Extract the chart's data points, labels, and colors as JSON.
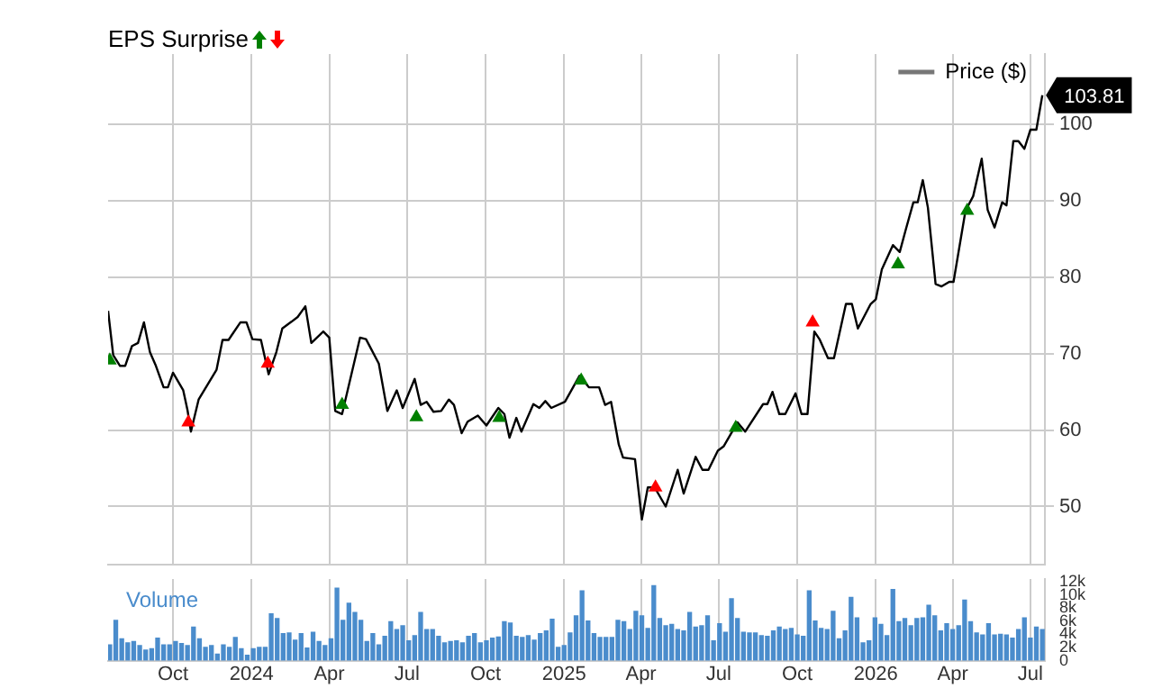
{
  "chart_data": [
    {
      "type": "line",
      "title": "EPS Surprise",
      "tick_labels": "y",
      "xlim": [
        "2023-07-17",
        "2026-07-18"
      ],
      "xticks": [
        {
          "value": "2023-10-01",
          "label": null
        },
        {
          "value": "2024-01-01",
          "label": null
        },
        {
          "value": "2024-04-01",
          "label": null
        },
        {
          "value": "2024-07-01",
          "label": null
        },
        {
          "value": "2024-10-01",
          "label": null
        },
        {
          "value": "2025-01-01",
          "label": null
        },
        {
          "value": "2025-04-01",
          "label": null
        },
        {
          "value": "2025-07-01",
          "label": null
        },
        {
          "value": "2025-10-01",
          "label": null
        },
        {
          "value": "2026-01-01",
          "label": null
        },
        {
          "value": "2026-04-01",
          "label": null
        },
        {
          "value": "2026-07-01",
          "label": null
        }
      ],
      "ylim": [
        42.4,
        109.2
      ],
      "yticks": [
        50,
        60,
        70,
        80,
        90,
        100
      ],
      "grid": true,
      "legend": "top right",
      "series": [
        {
          "name": "Price ($)",
          "color": "#000000",
          "marker": "none",
          "x": [
            "2023-07-17",
            "2023-07-23",
            "2023-07-31",
            "2023-08-06",
            "2023-08-14",
            "2023-08-21",
            "2023-08-28",
            "2023-09-04",
            "2023-09-11",
            "2023-09-20",
            "2023-09-25",
            "2023-10-01",
            "2023-10-13",
            "2023-10-18",
            "2023-10-22",
            "2023-10-31",
            "2023-11-21",
            "2023-11-28",
            "2023-12-05",
            "2023-12-19",
            "2023-12-26",
            "2024-01-02",
            "2024-01-12",
            "2024-01-21",
            "2024-01-30",
            "2024-02-06",
            "2024-02-17",
            "2024-02-24",
            "2024-03-04",
            "2024-03-11",
            "2024-03-25",
            "2024-04-01",
            "2024-04-08",
            "2024-04-16",
            "2024-05-07",
            "2024-05-14",
            "2024-05-29",
            "2024-06-08",
            "2024-06-19",
            "2024-06-26",
            "2024-07-10",
            "2024-07-17",
            "2024-07-24",
            "2024-08-01",
            "2024-08-10",
            "2024-08-19",
            "2024-08-25",
            "2024-09-03",
            "2024-09-10",
            "2024-09-22",
            "2024-10-02",
            "2024-10-16",
            "2024-10-23",
            "2024-10-29",
            "2024-11-06",
            "2024-11-12",
            "2024-11-26",
            "2024-12-03",
            "2024-12-10",
            "2024-12-17",
            "2025-01-02",
            "2025-01-19",
            "2025-01-30",
            "2025-02-11",
            "2025-02-18",
            "2025-02-25",
            "2025-03-06",
            "2025-03-11",
            "2025-03-25",
            "2025-04-02",
            "2025-04-09",
            "2025-04-17",
            "2025-04-30",
            "2025-05-14",
            "2025-05-21",
            "2025-06-04",
            "2025-06-12",
            "2025-06-19",
            "2025-06-30",
            "2025-07-07",
            "2025-07-23",
            "2025-08-01",
            "2025-08-22",
            "2025-08-27",
            "2025-09-02",
            "2025-09-10",
            "2025-09-17",
            "2025-09-29",
            "2025-10-06",
            "2025-10-13",
            "2025-10-21",
            "2025-10-27",
            "2025-11-06",
            "2025-11-13",
            "2025-11-27",
            "2025-12-04",
            "2025-12-11",
            "2025-12-26",
            "2026-01-01",
            "2026-01-08",
            "2026-01-21",
            "2026-01-29",
            "2026-02-05",
            "2026-02-14",
            "2026-02-19",
            "2026-02-25",
            "2026-03-03",
            "2026-03-12",
            "2026-03-19",
            "2026-03-28",
            "2026-04-02",
            "2026-04-16",
            "2026-04-25",
            "2026-05-05",
            "2026-05-12",
            "2026-05-20",
            "2026-05-29",
            "2026-06-03",
            "2026-06-11",
            "2026-06-17",
            "2026-06-24",
            "2026-07-01",
            "2026-07-08",
            "2026-07-15"
          ],
          "values": [
            75.6,
            69.8,
            68.4,
            68.4,
            71.0,
            71.4,
            74.1,
            70.2,
            68.4,
            65.6,
            65.6,
            67.5,
            65.2,
            62.6,
            59.8,
            64.0,
            67.9,
            71.8,
            71.8,
            74.1,
            74.1,
            71.9,
            71.8,
            67.3,
            70.2,
            73.3,
            74.2,
            74.8,
            76.2,
            71.4,
            72.9,
            72.1,
            62.5,
            62.1,
            72.1,
            71.9,
            68.7,
            62.5,
            65.2,
            62.9,
            66.7,
            63.3,
            63.7,
            62.4,
            62.5,
            64.0,
            63.3,
            59.6,
            61.1,
            61.9,
            60.6,
            62.9,
            62.1,
            59.0,
            61.6,
            59.8,
            63.4,
            62.9,
            63.8,
            62.9,
            63.7,
            67.1,
            65.6,
            65.6,
            63.3,
            63.7,
            58.1,
            56.4,
            56.2,
            48.3,
            52.5,
            52.5,
            50.0,
            54.8,
            51.7,
            56.5,
            54.8,
            54.8,
            57.3,
            57.9,
            61.0,
            59.8,
            63.4,
            63.4,
            65.0,
            62.1,
            62.1,
            64.8,
            62.1,
            62.1,
            72.9,
            71.9,
            69.4,
            69.4,
            76.5,
            76.5,
            73.3,
            76.5,
            77.1,
            81.0,
            84.2,
            83.3,
            86.2,
            89.8,
            89.8,
            92.7,
            89.1,
            79.1,
            78.8,
            79.4,
            79.4,
            88.7,
            90.6,
            95.5,
            88.8,
            86.5,
            89.8,
            89.4,
            97.8,
            97.8,
            96.8,
            99.3,
            99.3,
            103.81
          ],
          "value_labels": [
            null,
            null,
            null,
            null,
            null,
            null,
            null,
            null,
            null,
            null,
            null,
            null,
            null,
            null,
            null,
            null,
            null,
            null,
            null,
            null,
            null,
            null,
            null,
            null,
            null,
            null,
            null,
            null,
            null,
            null,
            null,
            null,
            null,
            null,
            null,
            null,
            null,
            null,
            null,
            null,
            null,
            null,
            null,
            null,
            null,
            null,
            null,
            null,
            null,
            null,
            null,
            null,
            null,
            null,
            null,
            null,
            null,
            null,
            null,
            null,
            null,
            null,
            null,
            null,
            null,
            null,
            null,
            null,
            null,
            null,
            null,
            null,
            null,
            null,
            null,
            null,
            null,
            null,
            null,
            null,
            null,
            null,
            null,
            null,
            null,
            null,
            null,
            null,
            null,
            null,
            null,
            null,
            null,
            null,
            null,
            null,
            null,
            null,
            null,
            null,
            null,
            null,
            null,
            null,
            null,
            null,
            null,
            null,
            null,
            null,
            null,
            null,
            null,
            null,
            null,
            null,
            null,
            null,
            null,
            null,
            null,
            null,
            null,
            "103.81"
          ]
        },
        {
          "type": "scatter",
          "color": "#008000",
          "marker": "triangle",
          "x": [
            "2023-07-19",
            "2024-04-16",
            "2024-07-12",
            "2024-10-17",
            "2025-01-21",
            "2025-07-21",
            "2026-01-27",
            "2026-04-18"
          ],
          "values": [
            69.1,
            63.3,
            61.7,
            61.6,
            66.5,
            60.3,
            81.7,
            88.7
          ]
        },
        {
          "type": "scatter",
          "color": "#ff0000",
          "marker": "triangle",
          "x": [
            "2023-10-19",
            "2024-01-20",
            "2025-04-18",
            "2025-10-19"
          ],
          "values": [
            61.0,
            68.7,
            52.5,
            74.1
          ]
        }
      ]
    },
    {
      "type": "bar",
      "xlim": [
        "2023-07-17",
        "2026-07-18"
      ],
      "xticks": [
        {
          "value": "2023-10-01",
          "label": "Oct"
        },
        {
          "value": "2024-01-01",
          "label": "2024"
        },
        {
          "value": "2024-04-01",
          "label": "Apr"
        },
        {
          "value": "2024-07-01",
          "label": "Jul"
        },
        {
          "value": "2024-10-01",
          "label": "Oct"
        },
        {
          "value": "2025-01-01",
          "label": "2025"
        },
        {
          "value": "2025-04-01",
          "label": "Apr"
        },
        {
          "value": "2025-07-01",
          "label": "Jul"
        },
        {
          "value": "2025-10-01",
          "label": "Oct"
        },
        {
          "value": "2026-01-01",
          "label": "2026"
        },
        {
          "value": "2026-04-01",
          "label": "Apr"
        },
        {
          "value": "2026-07-01",
          "label": "Jul"
        }
      ],
      "ylim": [
        0,
        12.4
      ],
      "yticks": [
        0,
        {
          "value": 2,
          "label": "2k"
        },
        {
          "value": 4,
          "label": "4k"
        },
        {
          "value": 6,
          "label": "6k"
        },
        {
          "value": 8,
          "label": "8k"
        },
        {
          "value": 10,
          "label": "10k"
        },
        {
          "value": 12,
          "label": "12k"
        }
      ],
      "grid": "x",
      "series": [
        {
          "name": "Volume",
          "color": "#4a8ccc",
          "x": [
            "2023-07-19",
            "2023-07-26",
            "2023-08-02",
            "2023-08-09",
            "2023-08-16",
            "2023-08-23",
            "2023-08-30",
            "2023-09-06",
            "2023-09-13",
            "2023-09-20",
            "2023-09-27",
            "2023-10-04",
            "2023-10-11",
            "2023-10-18",
            "2023-10-25",
            "2023-11-01",
            "2023-11-08",
            "2023-11-15",
            "2023-11-22",
            "2023-11-29",
            "2023-12-06",
            "2023-12-13",
            "2023-12-20",
            "2023-12-27",
            "2024-01-03",
            "2024-01-10",
            "2024-01-17",
            "2024-01-24",
            "2024-01-31",
            "2024-02-07",
            "2024-02-14",
            "2024-02-21",
            "2024-02-28",
            "2024-03-06",
            "2024-03-13",
            "2024-03-20",
            "2024-03-27",
            "2024-04-03",
            "2024-04-10",
            "2024-04-17",
            "2024-04-24",
            "2024-05-01",
            "2024-05-08",
            "2024-05-15",
            "2024-05-22",
            "2024-05-29",
            "2024-06-05",
            "2024-06-12",
            "2024-06-19",
            "2024-06-26",
            "2024-07-03",
            "2024-07-10",
            "2024-07-17",
            "2024-07-24",
            "2024-07-31",
            "2024-08-07",
            "2024-08-14",
            "2024-08-21",
            "2024-08-28",
            "2024-09-04",
            "2024-09-11",
            "2024-09-18",
            "2024-09-25",
            "2024-10-02",
            "2024-10-09",
            "2024-10-16",
            "2024-10-23",
            "2024-10-30",
            "2024-11-06",
            "2024-11-13",
            "2024-11-20",
            "2024-11-27",
            "2024-12-04",
            "2024-12-11",
            "2024-12-18",
            "2024-12-25",
            "2025-01-01",
            "2025-01-08",
            "2025-01-15",
            "2025-01-22",
            "2025-01-29",
            "2025-02-05",
            "2025-02-12",
            "2025-02-19",
            "2025-02-26",
            "2025-03-05",
            "2025-03-12",
            "2025-03-19",
            "2025-03-26",
            "2025-04-02",
            "2025-04-09",
            "2025-04-16",
            "2025-04-23",
            "2025-04-30",
            "2025-05-07",
            "2025-05-14",
            "2025-05-21",
            "2025-05-28",
            "2025-06-04",
            "2025-06-11",
            "2025-06-18",
            "2025-06-25",
            "2025-07-02",
            "2025-07-09",
            "2025-07-16",
            "2025-07-23",
            "2025-07-30",
            "2025-08-06",
            "2025-08-13",
            "2025-08-20",
            "2025-08-27",
            "2025-09-03",
            "2025-09-10",
            "2025-09-17",
            "2025-09-24",
            "2025-10-01",
            "2025-10-08",
            "2025-10-15",
            "2025-10-22",
            "2025-10-29",
            "2025-11-05",
            "2025-11-12",
            "2025-11-19",
            "2025-11-26",
            "2025-12-03",
            "2025-12-10",
            "2025-12-17",
            "2025-12-24",
            "2025-12-31",
            "2026-01-07",
            "2026-01-14",
            "2026-01-21",
            "2026-01-28",
            "2026-02-04",
            "2026-02-11",
            "2026-02-18",
            "2026-02-25",
            "2026-03-04",
            "2026-03-11",
            "2026-03-18",
            "2026-03-25",
            "2026-04-01",
            "2026-04-08",
            "2026-04-15",
            "2026-04-22",
            "2026-04-29",
            "2026-05-06",
            "2026-05-13",
            "2026-05-20",
            "2026-05-27",
            "2026-06-03",
            "2026-06-10",
            "2026-06-17",
            "2026-06-24",
            "2026-07-01",
            "2026-07-08",
            "2026-07-15"
          ],
          "values": [
            2.4,
            6.1,
            3.3,
            2.7,
            2.9,
            2.3,
            1.6,
            1.8,
            3.4,
            2.4,
            2.4,
            2.9,
            2.6,
            2.3,
            5.1,
            3.3,
            2.0,
            2.3,
            1.0,
            2.4,
            2.0,
            3.5,
            1.8,
            0.8,
            1.8,
            2.0,
            2.0,
            7.1,
            6.4,
            4.1,
            4.2,
            3.1,
            4.1,
            1.9,
            4.3,
            2.9,
            2.3,
            3.3,
            11.0,
            6.1,
            8.7,
            7.3,
            6.1,
            2.9,
            4.1,
            2.4,
            3.7,
            5.9,
            4.7,
            5.3,
            3.0,
            3.8,
            7.3,
            4.7,
            4.7,
            3.7,
            2.7,
            2.9,
            3.0,
            2.7,
            3.7,
            4.1,
            2.7,
            3.0,
            3.4,
            3.6,
            5.9,
            5.7,
            3.7,
            3.5,
            3.8,
            3.1,
            4.1,
            4.5,
            6.3,
            2.0,
            2.3,
            4.2,
            6.8,
            10.6,
            6.0,
            4.1,
            3.5,
            3.5,
            3.5,
            6.1,
            5.9,
            4.7,
            7.5,
            6.8,
            4.9,
            11.4,
            6.4,
            5.3,
            5.5,
            4.7,
            4.5,
            7.3,
            5.1,
            5.3,
            6.8,
            3.0,
            5.6,
            4.3,
            9.4,
            6.4,
            4.3,
            4.2,
            4.2,
            3.8,
            3.7,
            4.5,
            5.1,
            4.7,
            4.9,
            3.9,
            3.7,
            10.6,
            6.0,
            4.9,
            4.7,
            7.5,
            3.3,
            4.5,
            9.6,
            6.5,
            2.7,
            3.0,
            6.5,
            5.5,
            3.8,
            10.8,
            5.9,
            6.4,
            5.3,
            6.4,
            6.5,
            8.4,
            6.8,
            4.5,
            5.6,
            4.7,
            5.3,
            9.2,
            5.9,
            4.2,
            3.9,
            5.6,
            3.9,
            4.0,
            3.9,
            3.4,
            4.7,
            6.5,
            3.4,
            5.1,
            4.7
          ]
        }
      ]
    }
  ]
}
